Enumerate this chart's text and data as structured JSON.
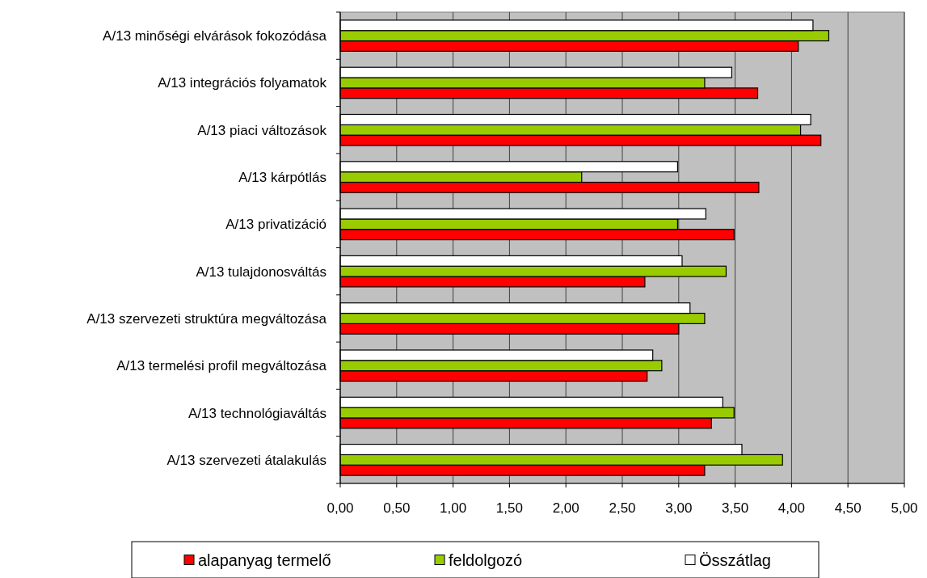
{
  "chart_data": {
    "type": "bar",
    "orientation": "horizontal",
    "categories": [
      "A/13  minőségi elvárások fokozódása",
      "A/13  integrációs folyamatok",
      "A/13  piaci változások",
      "A/13  kárpótlás",
      "A/13  privatizáció",
      "A/13  tulajdonosváltás",
      "A/13  szervezeti struktúra megváltozása",
      "A/13  termelési profil megváltozása",
      "A/13  technológiaváltás",
      "A/13  szervezeti átalakulás"
    ],
    "series": [
      {
        "name": "alapanyag termelő",
        "color": "#ff0000",
        "values": [
          4.06,
          3.7,
          4.26,
          3.71,
          3.49,
          2.7,
          3.0,
          2.72,
          3.29,
          3.23
        ]
      },
      {
        "name": "feldolgozó",
        "color": "#99cc00",
        "values": [
          4.33,
          3.23,
          4.08,
          2.14,
          2.99,
          3.42,
          3.23,
          2.85,
          3.49,
          3.92
        ]
      },
      {
        "name": "Összátlag",
        "color": "#ffffff",
        "values": [
          4.19,
          3.47,
          4.17,
          2.99,
          3.24,
          3.03,
          3.1,
          2.77,
          3.39,
          3.56
        ]
      }
    ],
    "xlim": [
      0,
      5
    ],
    "xticks": [
      {
        "value": 0,
        "label": "0,00"
      },
      {
        "value": 0.5,
        "label": "0,50"
      },
      {
        "value": 1,
        "label": "1,00"
      },
      {
        "value": 1.5,
        "label": "1,50"
      },
      {
        "value": 2,
        "label": "2,00"
      },
      {
        "value": 2.5,
        "label": "2,50"
      },
      {
        "value": 3,
        "label": "3,00"
      },
      {
        "value": 3.5,
        "label": "3,50"
      },
      {
        "value": 4,
        "label": "4,00"
      },
      {
        "value": 4.5,
        "label": "4,50"
      },
      {
        "value": 5,
        "label": "5,00"
      }
    ],
    "grid": "x",
    "legend": "bottom"
  }
}
